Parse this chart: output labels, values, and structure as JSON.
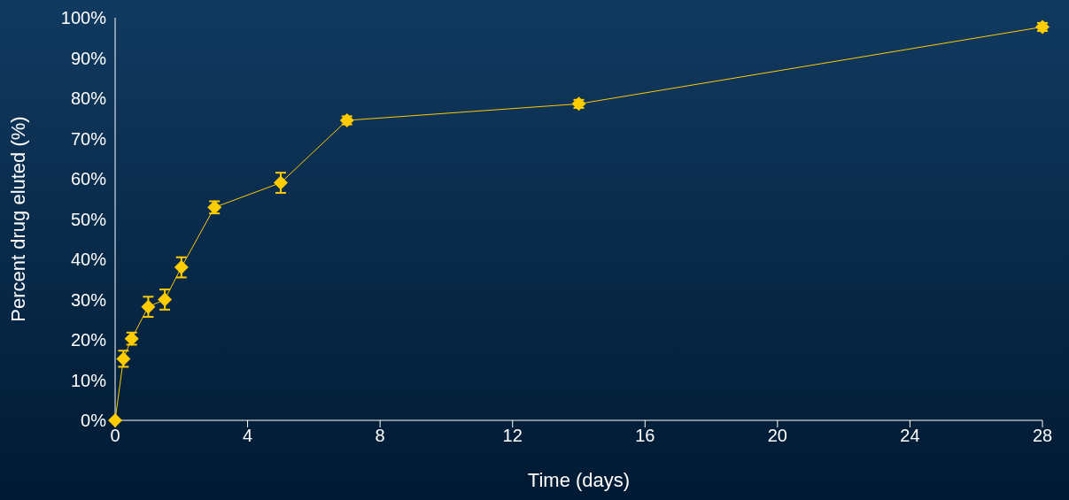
{
  "chart_data": {
    "type": "line",
    "xlabel": "Time (days)",
    "ylabel": "Percent drug eluted (%)",
    "x": [
      0,
      0.25,
      0.5,
      1,
      1.5,
      2,
      3,
      5,
      7,
      14,
      28
    ],
    "series": [
      {
        "color": "#ffcc00",
        "values": [
          0,
          15.3,
          20.3,
          28.2,
          30,
          38,
          52.9,
          59,
          74.5,
          78.6,
          97.7
        ],
        "errors": [
          null,
          2,
          1.5,
          2.5,
          2.5,
          2.5,
          1.5,
          2.5,
          1,
          1,
          1
        ]
      }
    ],
    "xlim": [
      0,
      28
    ],
    "xticks": [
      0,
      4,
      8,
      12,
      16,
      20,
      24,
      28
    ],
    "ylim": [
      0,
      100
    ],
    "yticks": [
      {
        "value": 0,
        "label": "0%"
      },
      {
        "value": 10,
        "label": "10%"
      },
      {
        "value": 20,
        "label": "20%"
      },
      {
        "value": 30,
        "label": "30%"
      },
      {
        "value": 40,
        "label": "40%"
      },
      {
        "value": 50,
        "label": "50%"
      },
      {
        "value": 60,
        "label": "60%"
      },
      {
        "value": 70,
        "label": "70%"
      },
      {
        "value": 80,
        "label": "80%"
      },
      {
        "value": 90,
        "label": "90%"
      },
      {
        "value": 100,
        "label": "100%"
      }
    ],
    "marker": "diamond",
    "line_style": "solid",
    "grid": false,
    "legend": false
  }
}
